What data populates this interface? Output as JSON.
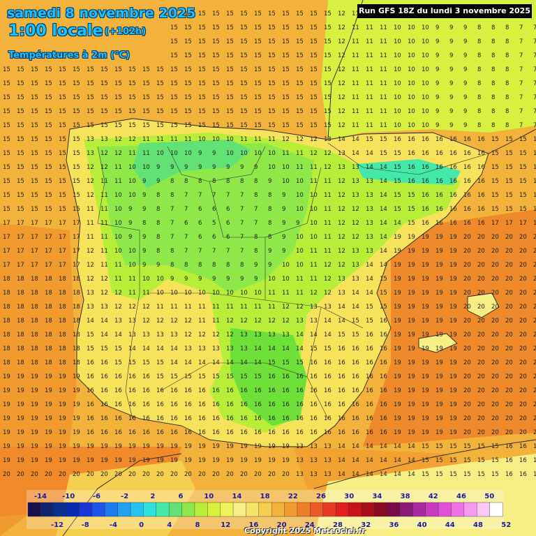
{
  "header": {
    "date": "samedi 8 novembre 2025",
    "time": "1:00 locale",
    "offset": "(+102h)",
    "parameter": "Températures à 2m (°C)"
  },
  "run_info": "Run GFS 18Z du lundi 3 novembre 2025",
  "copyright": "Copyright 2025 Meteociel.fr",
  "map": {
    "sea_color": "#f2b23c",
    "warm_sea_color": "#f08a2a",
    "land_mild_color": "#f7e25c",
    "land_cool_color": "#b8ee3a",
    "land_cold_color": "#6fe03a",
    "mountain_color": "#5ee8c0"
  },
  "scale": {
    "top_labels": [
      "-14",
      "-10",
      "-6",
      "-2",
      "2",
      "6",
      "10",
      "14",
      "18",
      "22",
      "26",
      "30",
      "34",
      "38",
      "42",
      "46",
      "50"
    ],
    "bottom_labels": [
      "-12",
      "-8",
      "-4",
      "0",
      "4",
      "8",
      "12",
      "16",
      "20",
      "24",
      "28",
      "32",
      "36",
      "40",
      "44",
      "48",
      "52"
    ],
    "colors": [
      "#1a0f4d",
      "#11236e",
      "#0c2f8f",
      "#0a2ab4",
      "#1b36d6",
      "#1d55e8",
      "#1e7bf0",
      "#22a0f2",
      "#26c3f0",
      "#2ee0de",
      "#44e8a8",
      "#62e274",
      "#8ee84a",
      "#b8ee3a",
      "#d8f040",
      "#f0f25a",
      "#f7ee86",
      "#f5e36a",
      "#f4cf50",
      "#f2b23c",
      "#f09a30",
      "#ee7e2a",
      "#ea5a26",
      "#e83a22",
      "#e0201e",
      "#c8141a",
      "#a80e16",
      "#8a0a22",
      "#7a0a4a",
      "#8a1a7a",
      "#a82aa0",
      "#c83ac0",
      "#e050d8",
      "#ee72e6",
      "#f59af0",
      "#fbc6f8",
      "#ffffff"
    ]
  }
}
